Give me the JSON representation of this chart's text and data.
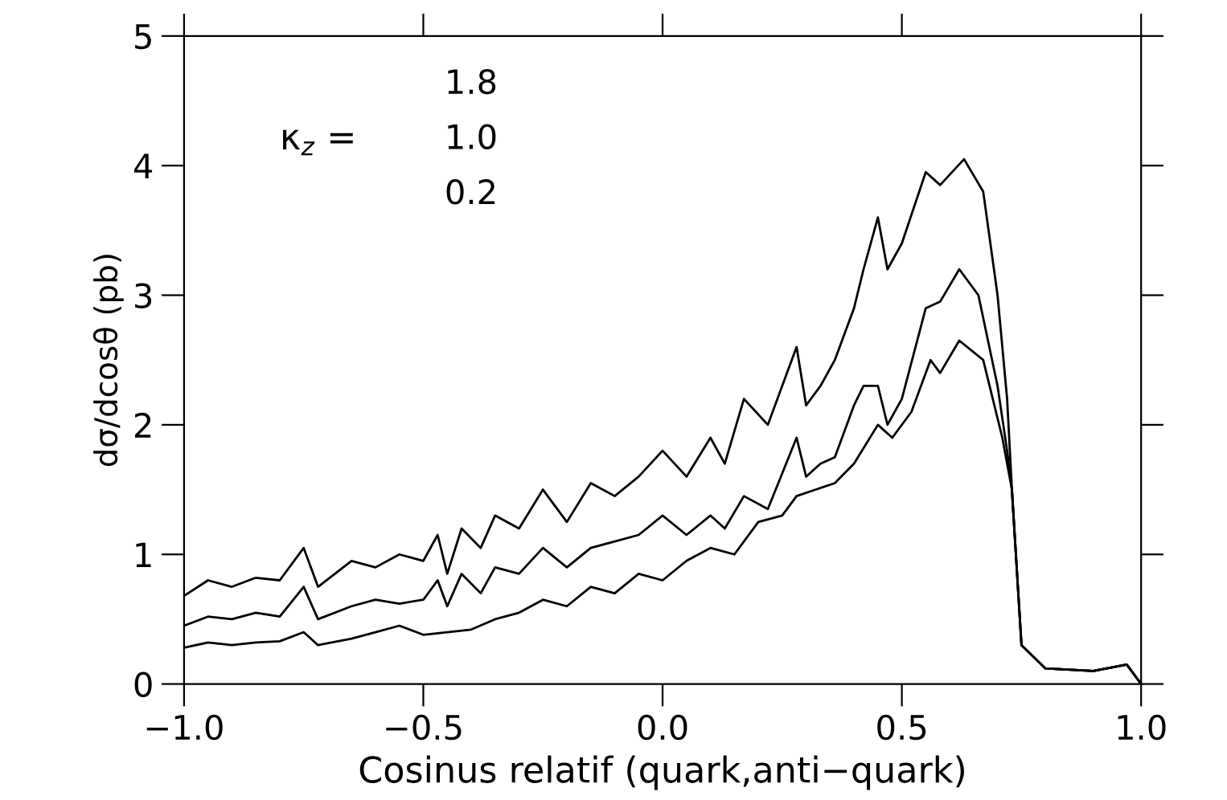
{
  "chart_data": {
    "type": "line",
    "xlabel": "Cosinus relatif (quark,anti−quark)",
    "ylabel": "dσ/dcosθ (pb)",
    "annotations": [
      "κ$_{z}$ =",
      "1.8",
      "1.0",
      "0.2"
    ],
    "grid": false,
    "marker": "none",
    "line_style": "solid",
    "xlim": [
      -1,
      1
    ],
    "ylim": [
      0,
      5
    ],
    "xticks": [
      {
        "value": -1,
        "label": "−1.0"
      },
      {
        "value": -0.5,
        "label": "−0.5"
      },
      {
        "value": 0,
        "label": "0.0"
      },
      {
        "value": 0.5,
        "label": "0.5"
      },
      {
        "value": 1,
        "label": "1.0"
      }
    ],
    "yticks": [
      0,
      1,
      2,
      3,
      4,
      5
    ],
    "series": [
      {
        "color": "#000000",
        "x": [
          -1,
          -0.95,
          -0.9,
          -0.85,
          -0.8,
          -0.75,
          -0.72,
          -0.65,
          -0.6,
          -0.55,
          -0.5,
          -0.47,
          -0.45,
          -0.42,
          -0.38,
          -0.35,
          -0.3,
          -0.25,
          -0.2,
          -0.15,
          -0.1,
          -0.05,
          0,
          0.05,
          0.1,
          0.13,
          0.17,
          0.22,
          0.28,
          0.3,
          0.33,
          0.36,
          0.4,
          0.42,
          0.45,
          0.47,
          0.5,
          0.55,
          0.58,
          0.63,
          0.67,
          0.7,
          0.72,
          0.73,
          0.75,
          0.8,
          0.9,
          0.97,
          1
        ],
        "values": [
          0.68,
          0.8,
          0.75,
          0.82,
          0.8,
          1.05,
          0.75,
          0.95,
          0.9,
          1.0,
          0.95,
          1.15,
          0.85,
          1.2,
          1.05,
          1.3,
          1.2,
          1.5,
          1.25,
          1.55,
          1.45,
          1.6,
          1.8,
          1.6,
          1.9,
          1.7,
          2.2,
          2.0,
          2.6,
          2.15,
          2.3,
          2.5,
          2.9,
          3.2,
          3.6,
          3.2,
          3.4,
          3.95,
          3.85,
          4.05,
          3.8,
          3.0,
          2.2,
          1.5,
          0.3,
          0.12,
          0.1,
          0.15,
          0.0
        ]
      },
      {
        "color": "#000000",
        "x": [
          -1,
          -0.95,
          -0.9,
          -0.85,
          -0.8,
          -0.75,
          -0.72,
          -0.65,
          -0.6,
          -0.55,
          -0.5,
          -0.47,
          -0.45,
          -0.42,
          -0.38,
          -0.35,
          -0.3,
          -0.25,
          -0.2,
          -0.15,
          -0.1,
          -0.05,
          0,
          0.05,
          0.1,
          0.13,
          0.17,
          0.22,
          0.28,
          0.3,
          0.33,
          0.36,
          0.4,
          0.42,
          0.45,
          0.47,
          0.5,
          0.55,
          0.58,
          0.62,
          0.66,
          0.7,
          0.72,
          0.73,
          0.75,
          0.8,
          0.9,
          0.97,
          1
        ],
        "values": [
          0.45,
          0.52,
          0.5,
          0.55,
          0.52,
          0.75,
          0.5,
          0.6,
          0.65,
          0.62,
          0.65,
          0.8,
          0.6,
          0.85,
          0.7,
          0.9,
          0.85,
          1.05,
          0.9,
          1.05,
          1.1,
          1.15,
          1.3,
          1.15,
          1.3,
          1.2,
          1.45,
          1.35,
          1.9,
          1.6,
          1.7,
          1.75,
          2.15,
          2.3,
          2.3,
          2.0,
          2.2,
          2.9,
          2.95,
          3.2,
          3.0,
          2.3,
          1.8,
          1.5,
          0.3,
          0.12,
          0.1,
          0.15,
          0.0
        ]
      },
      {
        "color": "#000000",
        "x": [
          -1,
          -0.95,
          -0.9,
          -0.85,
          -0.8,
          -0.75,
          -0.72,
          -0.65,
          -0.6,
          -0.55,
          -0.5,
          -0.45,
          -0.4,
          -0.35,
          -0.3,
          -0.25,
          -0.2,
          -0.15,
          -0.1,
          -0.05,
          0,
          0.05,
          0.1,
          0.15,
          0.2,
          0.25,
          0.28,
          0.32,
          0.36,
          0.4,
          0.45,
          0.48,
          0.52,
          0.56,
          0.58,
          0.62,
          0.67,
          0.71,
          0.73,
          0.75,
          0.8,
          0.9,
          0.97,
          1
        ],
        "values": [
          0.28,
          0.32,
          0.3,
          0.32,
          0.33,
          0.4,
          0.3,
          0.35,
          0.4,
          0.45,
          0.38,
          0.4,
          0.42,
          0.5,
          0.55,
          0.65,
          0.6,
          0.75,
          0.7,
          0.85,
          0.8,
          0.95,
          1.05,
          1.0,
          1.25,
          1.3,
          1.45,
          1.5,
          1.55,
          1.7,
          2.0,
          1.9,
          2.1,
          2.5,
          2.4,
          2.65,
          2.5,
          1.9,
          1.5,
          0.3,
          0.12,
          0.1,
          0.15,
          0.0
        ]
      }
    ]
  }
}
